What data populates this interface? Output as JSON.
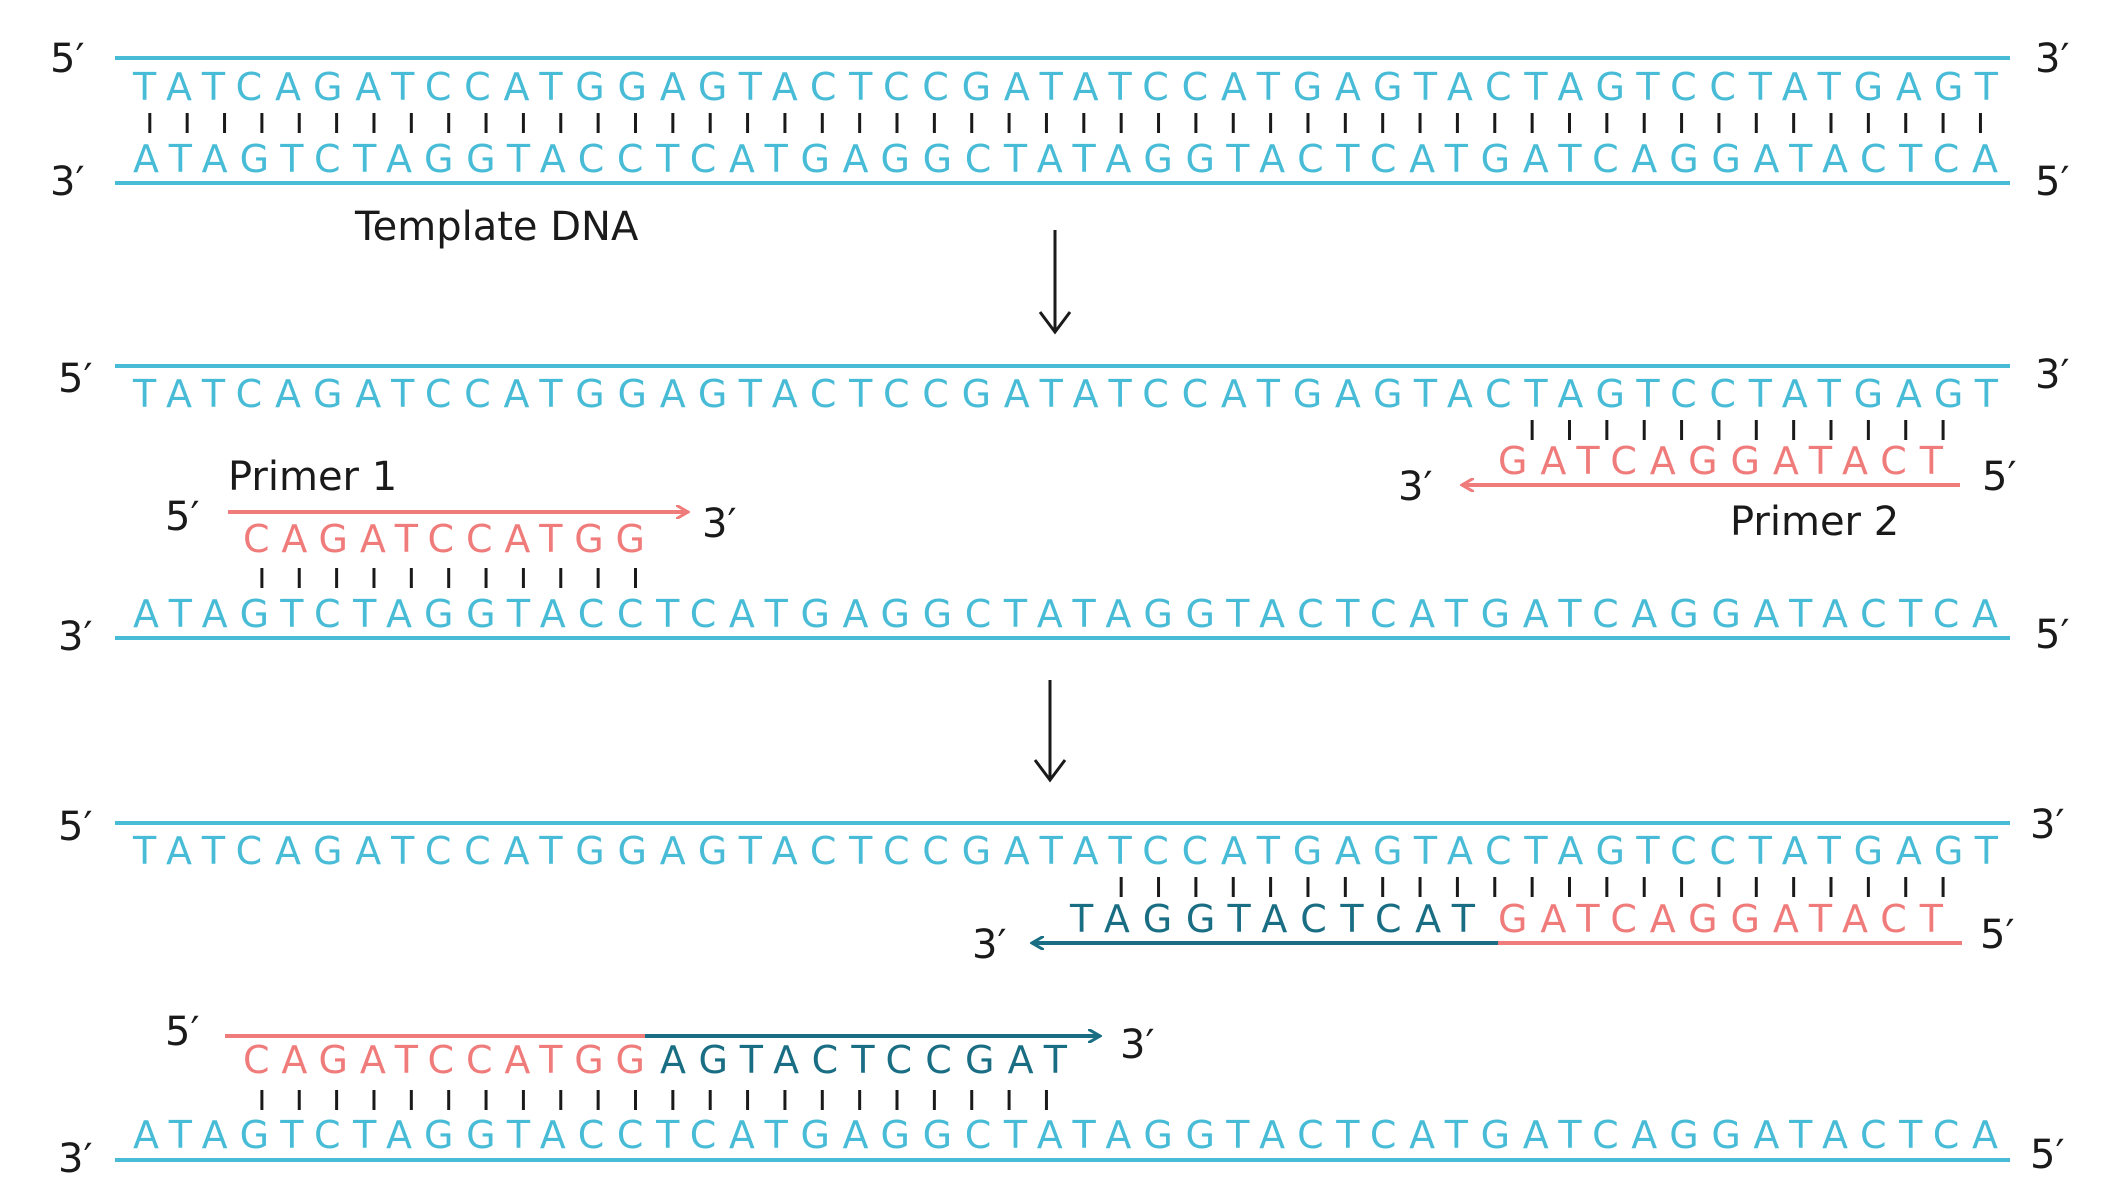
{
  "template": {
    "top_strand": "TATCAGATCCATGGAGTACTCCGATATCCATGAGTACTAGTCCTATGAGT",
    "bottom_strand": "ATAGTCTAGGTACCTCATGAGGCTATAGGTACTCATGATCAGGATACTCA",
    "label": "Template DNA"
  },
  "ends": {
    "five_prime": "5′",
    "three_prime": "3′"
  },
  "primer1": {
    "label": "Primer 1",
    "sequence": "CAGATCCATGG"
  },
  "primer2": {
    "label": "Primer 2",
    "sequence": "GATCAGGATACT"
  },
  "extension": {
    "primer2_new": "TAGGTACTCAT",
    "primer1_new": "AGTACTCCGAT"
  },
  "colors": {
    "template": "#48bcd6",
    "primer": "#f07b7b",
    "new_dna": "#1a6e84",
    "ink": "#1a1a1a"
  },
  "icons": [
    "down-arrow-icon",
    "primer-right-arrow-icon",
    "primer-left-arrow-icon"
  ]
}
